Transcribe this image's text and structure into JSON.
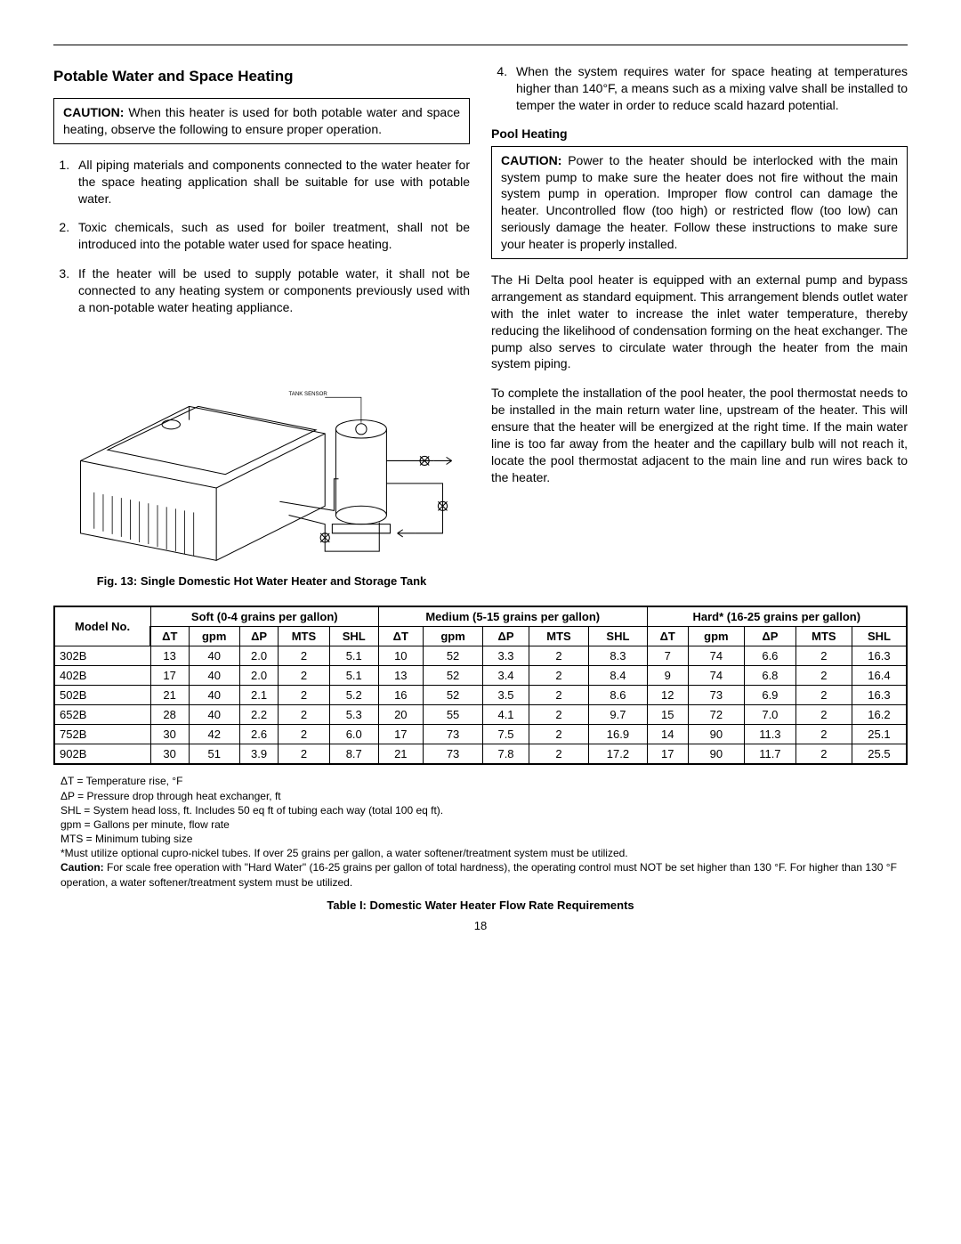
{
  "section_title": "Potable Water and Space Heating",
  "caution1": {
    "label": "CAUTION:",
    "text": " When this heater is used for both potable water and space heating, observe the following to ensure proper operation."
  },
  "list": [
    "All piping materials and components connected to the water heater for the space heating application shall be suitable for use with potable water.",
    "Toxic chemicals, such as used for boiler treatment, shall not be introduced into the potable water used for space heating.",
    "If the heater will be used to supply potable water, it shall not be connected to any heating system or components previously used with a non-potable water heating appliance.",
    "When the system requires water for space heating at temperatures higher than 140°F, a means such as a mixing valve shall be installed to temper the water in order to reduce scald hazard potential."
  ],
  "subhead": "Pool Heating",
  "caution2": {
    "label": "CAUTION:",
    "text": " Power to the heater should be interlocked with the main system pump to make sure the heater does not fire without the main system pump in operation. Improper flow control can damage the heater. Uncontrolled flow (too high) or restricted flow (too low) can seriously damage the heater. Follow these instructions to make sure your heater is properly installed."
  },
  "para1": "The Hi Delta pool heater is equipped with an external pump and bypass arrangement as standard equipment. This arrangement blends outlet water with the inlet water to increase the inlet water temperature, thereby reducing the likelihood of condensation forming on the heat exchanger. The pump also serves to circulate water through the heater from the main system piping.",
  "para2": "To complete the installation of the pool heater, the pool thermostat needs to be installed in the main return water line, upstream of the heater. This will ensure that the heater will be energized at the right time. If the main water line is too far away from the heater and the capillary bulb will not reach it, locate the pool thermostat adjacent to the main line and run wires back to the heater.",
  "fig_caption": "Fig. 13: Single Domestic Hot Water Heater and Storage Tank",
  "diagram_label": "TANK SENSOR",
  "table": {
    "head_model": "Model No.",
    "groups": [
      "Soft (0-4 grains per gallon)",
      "Medium (5-15 grains per gallon)",
      "Hard* (16-25 grains per gallon)"
    ],
    "subcols": [
      "ΔT",
      "gpm",
      "ΔP",
      "MTS",
      "SHL"
    ],
    "rows": [
      [
        "302B",
        "13",
        "40",
        "2.0",
        "2",
        "5.1",
        "10",
        "52",
        "3.3",
        "2",
        "8.3",
        "7",
        "74",
        "6.6",
        "2",
        "16.3"
      ],
      [
        "402B",
        "17",
        "40",
        "2.0",
        "2",
        "5.1",
        "13",
        "52",
        "3.4",
        "2",
        "8.4",
        "9",
        "74",
        "6.8",
        "2",
        "16.4"
      ],
      [
        "502B",
        "21",
        "40",
        "2.1",
        "2",
        "5.2",
        "16",
        "52",
        "3.5",
        "2",
        "8.6",
        "12",
        "73",
        "6.9",
        "2",
        "16.3"
      ],
      [
        "652B",
        "28",
        "40",
        "2.2",
        "2",
        "5.3",
        "20",
        "55",
        "4.1",
        "2",
        "9.7",
        "15",
        "72",
        "7.0",
        "2",
        "16.2"
      ],
      [
        "752B",
        "30",
        "42",
        "2.6",
        "2",
        "6.0",
        "17",
        "73",
        "7.5",
        "2",
        "16.9",
        "14",
        "90",
        "11.3",
        "2",
        "25.1"
      ],
      [
        "902B",
        "30",
        "51",
        "3.9",
        "2",
        "8.7",
        "21",
        "73",
        "7.8",
        "2",
        "17.2",
        "17",
        "90",
        "11.7",
        "2",
        "25.5"
      ]
    ]
  },
  "legend": [
    "ΔT = Temperature rise, °F",
    "ΔP = Pressure drop through heat exchanger, ft",
    "SHL = System head loss, ft.  Includes 50 eq ft of tubing each way (total 100 eq ft).",
    "gpm = Gallons per minute, flow rate",
    "MTS = Minimum tubing size",
    "*Must utilize optional cupro-nickel tubes. If over 25 grains per gallon, a water softener/treatment system must be utilized."
  ],
  "legend_caution": {
    "label": "Caution:",
    "text": " For scale free operation with \"Hard Water\" (16-25 grains per gallon of total hardness), the operating control must NOT be set higher than 130 °F. For higher than 130 °F operation, a water softener/treatment system must be utilized."
  },
  "table_caption": "Table I:  Domestic Water Heater Flow Rate Requirements",
  "page_number": "18"
}
